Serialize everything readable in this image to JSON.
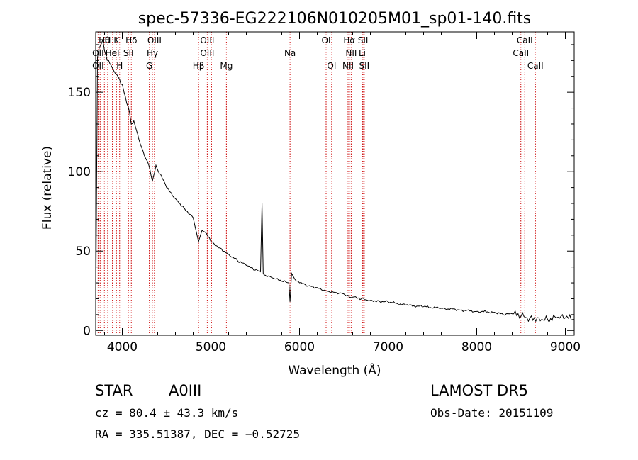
{
  "chart_data": {
    "type": "line",
    "title": "spec-57336-EG222106N010205M01_sp01-140.fits",
    "xlabel": "Wavelength (Å)",
    "ylabel": "Flux (relative)",
    "xlim": [
      3700,
      9100
    ],
    "ylim": [
      -3,
      188
    ],
    "x_ticks": [
      4000,
      5000,
      6000,
      7000,
      8000,
      9000
    ],
    "y_ticks": [
      0,
      50,
      100,
      150
    ],
    "grid": false,
    "line_color": "#000000",
    "marker_color": "#cc0000",
    "series": [
      {
        "x": [
          3700,
          3720,
          3740,
          3760,
          3780,
          3800,
          3830,
          3860,
          3890,
          3920,
          3950,
          3970,
          4000,
          4020,
          4050,
          4080,
          4101,
          4130,
          4160,
          4200,
          4250,
          4300,
          4340,
          4380,
          4400,
          4450,
          4500,
          4600,
          4700,
          4800,
          4861,
          4900,
          4950,
          5000,
          5100,
          5200,
          5300,
          5400,
          5500,
          5560,
          5577,
          5590,
          5600,
          5700,
          5800,
          5880,
          5893,
          5910,
          5930,
          5950,
          6000,
          6100,
          6200,
          6300,
          6400,
          6500,
          6563,
          6600,
          6700,
          6800,
          6900,
          7000,
          7200,
          7400,
          7600,
          7800,
          8000,
          8200,
          8300,
          8400,
          8500,
          8600,
          8700,
          8800,
          8900,
          9000,
          9100
        ],
        "y": [
          5,
          172,
          178,
          180,
          183,
          176,
          170,
          168,
          165,
          162,
          160,
          158,
          155,
          150,
          143,
          138,
          130,
          132,
          126,
          118,
          110,
          104,
          94,
          104,
          101,
          96,
          90,
          83,
          77,
          71,
          56,
          63,
          61,
          56,
          52,
          48,
          44,
          41,
          38,
          37,
          80,
          36,
          35,
          33,
          31,
          30,
          18,
          36,
          34,
          32,
          30,
          28,
          27,
          25,
          24,
          23,
          21,
          21,
          20,
          19,
          18.5,
          18,
          16,
          15,
          14,
          13,
          12,
          11.5,
          10,
          10.5,
          9,
          8,
          8,
          7,
          8,
          8,
          7
        ]
      }
    ],
    "line_markers": [
      {
        "label": "Hθ",
        "x": 3798,
        "row": 0
      },
      {
        "label": "H",
        "x": 3835,
        "row": 0
      },
      {
        "label": "K",
        "x": 3934,
        "row": 0
      },
      {
        "label": "Hδ",
        "x": 4102,
        "row": 0
      },
      {
        "label": "OIII",
        "x": 4363,
        "row": 0
      },
      {
        "label": "OIII",
        "x": 4959,
        "row": 0
      },
      {
        "label": "OI",
        "x": 6300,
        "row": 0
      },
      {
        "label": "Hα",
        "x": 6563,
        "row": 0
      },
      {
        "label": "SII",
        "x": 6717,
        "row": 0
      },
      {
        "label": "CaII",
        "x": 8542,
        "row": 0
      },
      {
        "label": "OII",
        "x": 3727,
        "row": 1
      },
      {
        "label": "HeI",
        "x": 3889,
        "row": 1
      },
      {
        "label": "SII",
        "x": 4070,
        "row": 1
      },
      {
        "label": "Hγ",
        "x": 4340,
        "row": 1
      },
      {
        "label": "OIII",
        "x": 4959,
        "row": 1
      },
      {
        "label": "Na",
        "x": 5893,
        "row": 1
      },
      {
        "label": "NII",
        "x": 6583,
        "row": 1
      },
      {
        "label": "Li",
        "x": 6708,
        "row": 1
      },
      {
        "label": "CaII",
        "x": 8498,
        "row": 1
      },
      {
        "label": "OII",
        "x": 3727,
        "row": 2
      },
      {
        "label": "H",
        "x": 3970,
        "row": 2
      },
      {
        "label": "G",
        "x": 4305,
        "row": 2
      },
      {
        "label": "Hβ",
        "x": 4861,
        "row": 2
      },
      {
        "label": "Mg",
        "x": 5175,
        "row": 2
      },
      {
        "label": "OI",
        "x": 6363,
        "row": 2
      },
      {
        "label": "NII",
        "x": 6548,
        "row": 2
      },
      {
        "label": "SII",
        "x": 6731,
        "row": 2
      },
      {
        "label": "CaII",
        "x": 8662,
        "row": 2
      }
    ],
    "marker_lines_x": [
      3727,
      3750,
      3798,
      3835,
      3889,
      3934,
      3970,
      4070,
      4102,
      4305,
      4340,
      4363,
      4861,
      4959,
      5007,
      5175,
      5893,
      6300,
      6363,
      6548,
      6563,
      6583,
      6708,
      6717,
      6731,
      8498,
      8542,
      8662
    ]
  },
  "info": {
    "object_class": "STAR",
    "subclass": "A0III",
    "survey": "LAMOST DR5",
    "redshift": "cz = 80.4 ± 43.3 km/s",
    "obs_date": "Obs-Date: 20151109",
    "coords": "RA = 335.51387, DEC =  −0.52725"
  }
}
